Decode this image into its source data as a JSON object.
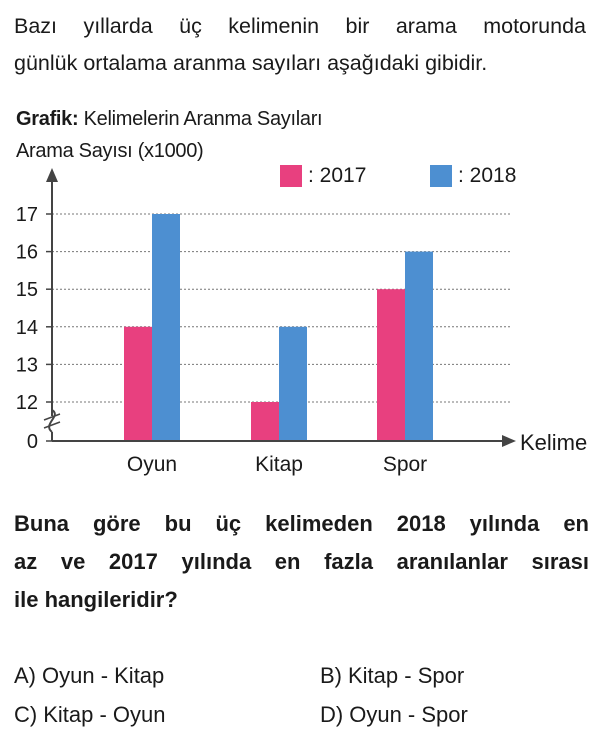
{
  "intro": {
    "line1": "Bazı yıllarda üç kelimenin bir arama motorunda",
    "line2": "günlük ortalama aranma sayıları aşağıdaki gibidir."
  },
  "chart_data": {
    "type": "bar",
    "title_bold": "Grafik:",
    "title": "Kelimelerin Aranma Sayıları",
    "ylabel": "Arama Sayısı (x1000)",
    "xlabel": "Kelime",
    "categories": [
      "Oyun",
      "Kitap",
      "Spor"
    ],
    "series": [
      {
        "name": ": 2017",
        "color": "#e8407f",
        "values": [
          14,
          12,
          15
        ]
      },
      {
        "name": ": 2018",
        "color": "#4d8fd1",
        "values": [
          17,
          14,
          16
        ]
      }
    ],
    "yticks": [
      0,
      12,
      13,
      14,
      15,
      16,
      17
    ],
    "ylim": [
      11.3,
      17.6
    ],
    "axis_break": true,
    "grid": true,
    "legend_position": "top-right"
  },
  "question": {
    "line1": "Buna göre bu üç kelimeden 2018 yılında en",
    "line2": "az ve 2017 yılında en fazla aranılanlar sırası",
    "line3": "ile hangileridir?"
  },
  "options": [
    {
      "key": "A)",
      "text": "Oyun - Kitap"
    },
    {
      "key": "B)",
      "text": "Kitap - Spor"
    },
    {
      "key": "C)",
      "text": "Kitap - Oyun"
    },
    {
      "key": "D)",
      "text": "Oyun - Spor"
    }
  ]
}
